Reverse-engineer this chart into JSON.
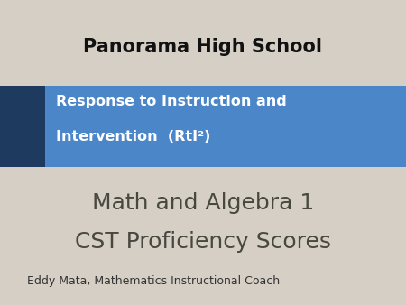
{
  "background_color": "#d5cfc5",
  "title_text": "Panorama High School",
  "title_fontsize": 15,
  "title_color": "#111111",
  "banner_text_line1": "Response to Instruction and",
  "banner_text_line2": "Intervention  (RtI²)",
  "banner_blue": "#4a86c8",
  "banner_navy": "#1e3a5f",
  "banner_text_color": "#ffffff",
  "banner_fontsize": 11.5,
  "main_line1": "Math and Algebra 1",
  "main_line2": "CST Proficiency Scores",
  "main_fontsize": 18,
  "main_color": "#484840",
  "subtitle_text": "Eddy Mata, Mathematics Instructional Coach",
  "subtitle_fontsize": 9,
  "subtitle_color": "#333333"
}
